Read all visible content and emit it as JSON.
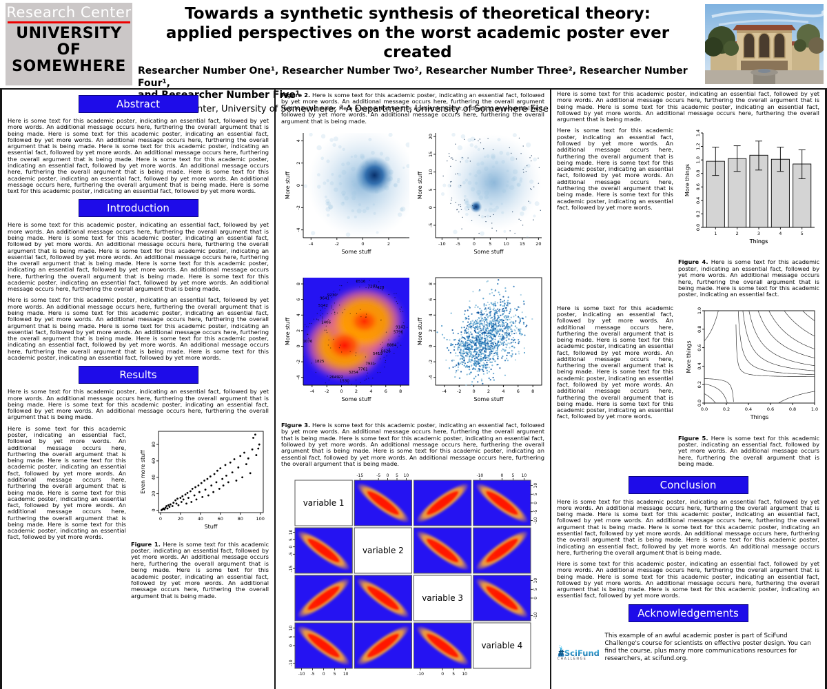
{
  "header": {
    "logo_center": "Research Center",
    "logo_university": [
      "UNIVERSITY",
      "OF",
      "SOMEWHERE"
    ],
    "title_line1": "Towards a synthetic synthesis of theoretical theory:",
    "title_line2": "applied perspectives on the worst academic poster ever created",
    "authors_line1": "Researcher Number One¹, Researcher Number Two², Researcher Number Three², Researcher Number Four¹,",
    "authors_line2": "and Researcher Number Five¹",
    "affiliations": "¹Research Center, University of Somewhere; ² A Department, University of Somewhere Else"
  },
  "sections": {
    "abstract": "Abstract",
    "introduction": "Introduction",
    "results": "Results",
    "conclusion": "Conclusion",
    "acknowledgements": "Acknowledgements"
  },
  "filler": {
    "s1": "Here is some text for this academic poster, indicating an essential fact, followed by yet more words.",
    "s2": "An additional message occurs here, furthering the overall argument that is being made."
  },
  "paragraphs": {
    "abstract": {
      "reps": 5,
      "end_s1": true
    },
    "intro_p1": {
      "reps": 5,
      "end_s1": false
    },
    "intro_p2": {
      "reps": 4,
      "end_s1": true
    },
    "results_p1": {
      "reps": 2,
      "end_s1": false
    },
    "results_side": {
      "reps": 3,
      "end_s1": true
    },
    "col3_p1": {
      "reps": 2,
      "end_s1": false
    },
    "col3_side1": {
      "reps": 2,
      "end_s1": true
    },
    "col3_side2": {
      "reps": 3,
      "end_s1": true
    },
    "concl_p1": {
      "reps": 4,
      "end_s1": false
    },
    "concl_p2": {
      "reps": 2,
      "end_s1": true
    },
    "cap1": {
      "reps": 2,
      "end_s1": false
    },
    "cap2": {
      "reps": 2,
      "end_s1": false
    },
    "cap3": {
      "reps": 3,
      "end_s1": false
    },
    "cap4": {
      "reps": 1,
      "end_s1": false,
      "extra": "Here is some text for this academic poster, indicating an essential fact."
    },
    "cap5": {
      "reps": 1,
      "end_s1": false
    }
  },
  "figures": {
    "fig1_label": "Figure 1.",
    "fig2_label": "Figure 2.",
    "fig3_label": "Figure 3.",
    "fig4_label": "Figure 4.",
    "fig5_label": "Figure 5."
  },
  "scifund": {
    "hash": "#",
    "name": "SciFund",
    "challenge": "C H A L L E N G E",
    "text": "This example of an awful academic poster is part of SciFund Challenge's course for scientists on effective poster design. You can find the course, plus many more communications resources for researchers, at scifund.org."
  },
  "colors": {
    "section_blue": "#1e0ce9",
    "heat_blue": "#2513f2",
    "bar_grey": "#d4d4d4",
    "logo_grey": "#cbc7c7",
    "logo_red": "#ee0000"
  },
  "chart_data": [
    {
      "id": "fig1",
      "type": "scatter",
      "xlabel": "Stuff",
      "ylabel": "Even more stuff",
      "xlim": [
        -2,
        103
      ],
      "ylim": [
        -3,
        96
      ],
      "xticks": [
        "0",
        "20",
        "40",
        "60",
        "80",
        "100"
      ],
      "yticks": [
        "0",
        "20",
        "40",
        "60",
        "80"
      ],
      "points": [
        [
          1,
          0
        ],
        [
          2,
          1
        ],
        [
          3,
          2
        ],
        [
          4,
          1
        ],
        [
          5,
          3
        ],
        [
          6,
          5
        ],
        [
          7,
          2
        ],
        [
          8,
          6
        ],
        [
          9,
          4
        ],
        [
          10,
          7
        ],
        [
          12,
          5
        ],
        [
          13,
          9
        ],
        [
          15,
          12
        ],
        [
          16,
          8
        ],
        [
          17,
          14
        ],
        [
          18,
          6
        ],
        [
          20,
          15
        ],
        [
          21,
          10
        ],
        [
          22,
          17
        ],
        [
          23,
          13
        ],
        [
          25,
          19
        ],
        [
          26,
          8
        ],
        [
          27,
          21
        ],
        [
          28,
          15
        ],
        [
          30,
          23
        ],
        [
          31,
          10
        ],
        [
          32,
          26
        ],
        [
          34,
          18
        ],
        [
          35,
          28
        ],
        [
          36,
          13
        ],
        [
          38,
          30
        ],
        [
          39,
          22
        ],
        [
          41,
          33
        ],
        [
          42,
          16
        ],
        [
          44,
          36
        ],
        [
          45,
          25
        ],
        [
          47,
          38
        ],
        [
          48,
          18
        ],
        [
          50,
          41
        ],
        [
          51,
          30
        ],
        [
          53,
          22
        ],
        [
          54,
          44
        ],
        [
          56,
          34
        ],
        [
          57,
          48
        ],
        [
          59,
          26
        ],
        [
          60,
          51
        ],
        [
          62,
          38
        ],
        [
          63,
          30
        ],
        [
          65,
          55
        ],
        [
          66,
          42
        ],
        [
          68,
          34
        ],
        [
          70,
          58
        ],
        [
          72,
          46
        ],
        [
          74,
          62
        ],
        [
          76,
          36
        ],
        [
          78,
          52
        ],
        [
          80,
          66
        ],
        [
          82,
          40
        ],
        [
          84,
          70
        ],
        [
          86,
          56
        ],
        [
          88,
          63
        ],
        [
          90,
          45
        ],
        [
          92,
          74
        ],
        [
          93,
          88
        ],
        [
          95,
          92
        ],
        [
          96,
          67
        ],
        [
          98,
          75
        ],
        [
          99,
          80
        ]
      ]
    },
    {
      "id": "fig2a",
      "type": "density",
      "xlabel": "Some stuff",
      "ylabel": "More stuff",
      "xlim": [
        -4.6,
        3.6
      ],
      "ylim": [
        -4.7,
        4.7
      ],
      "xticks": [
        "-4",
        "-2",
        "0",
        "2"
      ],
      "yticks": [
        "-4",
        "-2",
        "0",
        "2",
        "4"
      ],
      "clusters": [
        {
          "cx": 0.0,
          "cy": 0.2,
          "sd": 2.1,
          "kind": "light"
        },
        {
          "cx": 0.9,
          "cy": 0.9,
          "sd": 1.5,
          "kind": "dark"
        }
      ],
      "outliers": 0
    },
    {
      "id": "fig2b",
      "type": "density",
      "xlabel": "Some stuff",
      "ylabel": "More stuff",
      "xlim": [
        -12,
        21
      ],
      "ylim": [
        -8.5,
        21
      ],
      "xticks": [
        "-10",
        "-5",
        "0",
        "5",
        "10",
        "15",
        "20"
      ],
      "yticks": [
        "-5",
        "0",
        "5",
        "10",
        "15",
        "20"
      ],
      "clusters": [
        {
          "cx": 6,
          "cy": 7,
          "sd": 6.5,
          "kind": "light"
        },
        {
          "cx": 0.6,
          "cy": 0.2,
          "sd": 1.7,
          "kind": "dark"
        }
      ],
      "outliers": 85
    },
    {
      "id": "fig3a",
      "type": "heatmap",
      "xlabel": "Some stuff",
      "ylabel": "More stuff",
      "xlim": [
        -5.2,
        9.2
      ],
      "ylim": [
        -5,
        8.8
      ],
      "xticks": [
        "-4",
        "-2",
        "0",
        "2",
        "4",
        "6",
        "8"
      ],
      "yticks": [
        "-4",
        "-2",
        "0",
        "2",
        "4",
        "6",
        "8"
      ],
      "hot_centers": [
        {
          "cx": 0.4,
          "cy": 0.1
        },
        {
          "cx": 3.1,
          "cy": 3.2
        }
      ],
      "point_labels": [
        {
          "v": "6516",
          "x": 2.6,
          "y": 8.2
        },
        {
          "v": "7293",
          "x": 4.2,
          "y": 7.5
        },
        {
          "v": "428",
          "x": 5.3,
          "y": 7.4
        },
        {
          "v": "9230",
          "x": -1.3,
          "y": 6.4
        },
        {
          "v": "9641",
          "x": -2.3,
          "y": 6.0
        },
        {
          "v": "5142",
          "x": -2.5,
          "y": 5.1
        },
        {
          "v": "1406",
          "x": -2.1,
          "y": 2.9
        },
        {
          "v": "9143",
          "x": 8.0,
          "y": 2.3
        },
        {
          "v": "5796",
          "x": 7.7,
          "y": 1.7
        },
        {
          "v": "1076",
          "x": -4.6,
          "y": 0.5
        },
        {
          "v": "8884",
          "x": 6.8,
          "y": 0.0
        },
        {
          "v": "6626",
          "x": 6.0,
          "y": -0.8
        },
        {
          "v": "5419",
          "x": 4.9,
          "y": -1.1
        },
        {
          "v": "1825",
          "x": -3.0,
          "y": -2.1
        },
        {
          "v": "7931",
          "x": 3.9,
          "y": -2.4
        },
        {
          "v": "7761",
          "x": 2.9,
          "y": -3.1
        },
        {
          "v": "3254",
          "x": 1.6,
          "y": -3.5
        },
        {
          "v": "2649",
          "x": -1.0,
          "y": -4.1
        },
        {
          "v": "22",
          "x": -0.1,
          "y": -4.1
        },
        {
          "v": "1530",
          "x": 0.4,
          "y": -4.6
        }
      ]
    },
    {
      "id": "fig3b",
      "type": "scatter-dense",
      "xlabel": "Some stuff",
      "ylabel": "More stuff",
      "xlim": [
        -5.2,
        9.2
      ],
      "ylim": [
        -5,
        8.8
      ],
      "xticks": [
        "-4",
        "-2",
        "0",
        "2",
        "4",
        "6",
        "8"
      ],
      "yticks": [
        "-4",
        "-2",
        "0",
        "2",
        "4",
        "6",
        "8"
      ],
      "clusters": [
        {
          "cx": 0.3,
          "cy": -0.5,
          "sd": 1.6
        },
        {
          "cx": 3.0,
          "cy": 2.5,
          "sd": 1.9
        }
      ],
      "n": 1300,
      "palette": [
        "#9ecae1",
        "#6baed6",
        "#4292c6",
        "#2171b5",
        "#08519c"
      ]
    },
    {
      "id": "fig4",
      "type": "bar",
      "xlabel": "Things",
      "ylabel": "More things",
      "categories": [
        "1",
        "2",
        "3",
        "4",
        "5"
      ],
      "values": [
        0.98,
        1.02,
        1.07,
        1.01,
        0.94
      ],
      "err_low": [
        0.77,
        0.83,
        0.85,
        0.83,
        0.72
      ],
      "err_high": [
        1.19,
        1.21,
        1.28,
        1.19,
        1.15
      ],
      "ylim": [
        0,
        1.4
      ],
      "yticks": [
        "0.0",
        "0.2",
        "0.4",
        "0.6",
        "0.8",
        "1.0",
        "1.2",
        "1.4"
      ]
    },
    {
      "id": "fig5",
      "type": "contour",
      "xlabel": "Things",
      "ylabel": "More things",
      "xlim": [
        0,
        1
      ],
      "ylim": [
        0,
        1
      ],
      "xticks": [
        "0.0",
        "0.2",
        "0.4",
        "0.6",
        "0.8",
        "1.0"
      ],
      "yticks": [
        "0.0",
        "0.2",
        "0.4",
        "0.6",
        "0.8",
        "1.0"
      ],
      "saddle": [
        0.28,
        0.28
      ],
      "levels": [
        0.004,
        0.02,
        0.05,
        0.09,
        0.15,
        0.22,
        0.32,
        0.44
      ],
      "neg_levels": [
        -0.11
      ]
    },
    {
      "id": "pairs",
      "type": "pairs-matrix",
      "variables": [
        "variable 1",
        "variable 2",
        "variable 3",
        "variable 4"
      ],
      "corr_sign": [
        [
          0,
          -1,
          1,
          -1
        ],
        [
          -1,
          0,
          -1,
          1
        ],
        [
          1,
          -1,
          0,
          -1
        ],
        [
          -1,
          1,
          -1,
          0
        ]
      ],
      "edge_ticks": {
        "top": [
          [
            "-15",
            "-5",
            "0",
            "5",
            "10"
          ],
          [
            "-10",
            "0",
            "5",
            "10"
          ]
        ],
        "bottom": [
          [
            "-10",
            "-5",
            "0",
            "5",
            "10"
          ],
          [
            "-10",
            "0",
            "5",
            "10"
          ]
        ],
        "left": [
          [
            "10",
            "5",
            "0",
            "-5",
            "-15"
          ],
          [
            "10",
            "5",
            "0",
            "-10"
          ]
        ],
        "right": [
          [
            "10",
            "5",
            "0",
            "-5",
            "-10"
          ],
          [
            "10",
            "5",
            "0",
            "-10"
          ]
        ]
      }
    }
  ]
}
